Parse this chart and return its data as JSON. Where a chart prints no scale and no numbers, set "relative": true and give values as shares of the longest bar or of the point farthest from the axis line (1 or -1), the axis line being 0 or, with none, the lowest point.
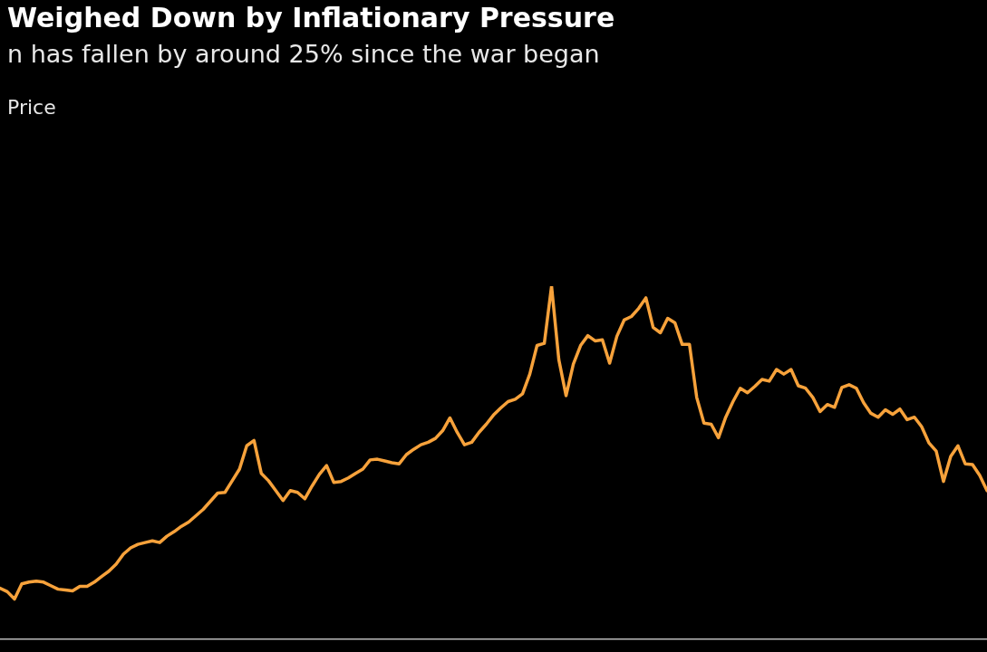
{
  "chart_data": {
    "type": "line",
    "title": "Weighed Down by Inflationary Pressure",
    "subtitle": "n has fallen by around 25% since the war began",
    "annotations": [
      "Price"
    ],
    "relative": true,
    "marker": "none",
    "categories": [
      null,
      null,
      null,
      null,
      null,
      null,
      null,
      null,
      null,
      null,
      null,
      null,
      null,
      null,
      null,
      null,
      null,
      null,
      null,
      null,
      null,
      null,
      null,
      null,
      null,
      null,
      null,
      null,
      null,
      null,
      null,
      null,
      null,
      null,
      null,
      null,
      null,
      null,
      null,
      null,
      null,
      null,
      null,
      null,
      null,
      null,
      null,
      null,
      null,
      null,
      null,
      null,
      null,
      null,
      null,
      null,
      null,
      null,
      null,
      null,
      null,
      null,
      null,
      null,
      null,
      null,
      null,
      null,
      null,
      null,
      null,
      null,
      null,
      null,
      null,
      null,
      null,
      null,
      null,
      null,
      null,
      null,
      null,
      null,
      null,
      null,
      null,
      null,
      null,
      null,
      null,
      null,
      null,
      null,
      null,
      null,
      null,
      null,
      null,
      null,
      null,
      null,
      null,
      null,
      null,
      null,
      null,
      null,
      null,
      null,
      null,
      null,
      null,
      null,
      null,
      null,
      null,
      null,
      null,
      null,
      null,
      null,
      null,
      null,
      null,
      null,
      null,
      null,
      null,
      null,
      null,
      null,
      null,
      null,
      null,
      null,
      null
    ],
    "series": [
      {
        "color": "#f7a23b",
        "values": [
          0.145,
          0.135,
          0.114,
          0.157,
          0.162,
          0.165,
          0.162,
          0.152,
          0.142,
          0.14,
          0.137,
          0.15,
          0.15,
          0.162,
          0.178,
          0.193,
          0.213,
          0.241,
          0.259,
          0.269,
          0.274,
          0.279,
          0.274,
          0.292,
          0.305,
          0.32,
          0.332,
          0.35,
          0.368,
          0.391,
          0.414,
          0.416,
          0.449,
          0.482,
          0.548,
          0.563,
          0.47,
          0.449,
          0.421,
          0.393,
          0.421,
          0.416,
          0.398,
          0.434,
          0.467,
          0.492,
          0.444,
          0.447,
          0.457,
          0.47,
          0.482,
          0.508,
          0.51,
          0.505,
          0.5,
          0.497,
          0.523,
          0.538,
          0.551,
          0.558,
          0.569,
          0.591,
          0.627,
          0.586,
          0.551,
          0.558,
          0.586,
          0.609,
          0.635,
          0.655,
          0.673,
          0.68,
          0.695,
          0.751,
          0.832,
          0.838,
          1,
          0.792,
          0.69,
          0.779,
          0.832,
          0.86,
          0.845,
          0.848,
          0.782,
          0.858,
          0.904,
          0.914,
          0.937,
          0.967,
          0.883,
          0.868,
          0.909,
          0.896,
          0.835,
          0.835,
          0.685,
          0.612,
          0.609,
          0.571,
          0.629,
          0.673,
          0.711,
          0.698,
          0.716,
          0.736,
          0.731,
          0.764,
          0.751,
          0.764,
          0.718,
          0.711,
          0.685,
          0.645,
          0.665,
          0.657,
          0.713,
          0.721,
          0.711,
          0.67,
          0.64,
          0.629,
          0.65,
          0.637,
          0.652,
          0.622,
          0.629,
          0.602,
          0.556,
          0.533,
          0.447,
          0.518,
          0.548,
          0.497,
          0.495,
          0.464,
          0.421
        ]
      }
    ]
  }
}
